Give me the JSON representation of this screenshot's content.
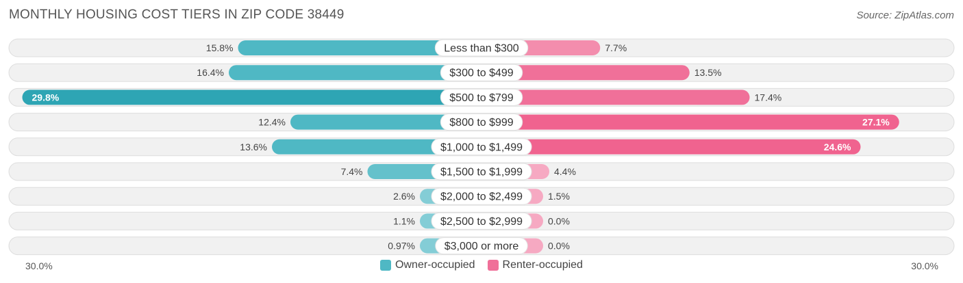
{
  "title": "MONTHLY HOUSING COST TIERS IN ZIP CODE 38449",
  "source": "Source: ZipAtlas.com",
  "chart_data": {
    "type": "bar",
    "orientation": "diverging-horizontal",
    "categories": [
      "Less than $300",
      "$300 to $499",
      "$500 to $799",
      "$800 to $999",
      "$1,000 to $1,499",
      "$1,500 to $1,999",
      "$2,000 to $2,499",
      "$2,500 to $2,999",
      "$3,000 or more"
    ],
    "series": [
      {
        "name": "Owner-occupied",
        "values": [
          15.8,
          16.4,
          29.8,
          12.4,
          13.6,
          7.4,
          2.6,
          1.1,
          0.97
        ],
        "labels": [
          "15.8%",
          "16.4%",
          "29.8%",
          "12.4%",
          "13.6%",
          "7.4%",
          "2.6%",
          "1.1%",
          "0.97%"
        ],
        "color": "#4fb8c4"
      },
      {
        "name": "Renter-occupied",
        "values": [
          7.7,
          13.5,
          17.4,
          27.1,
          24.6,
          4.4,
          1.5,
          0.0,
          0.0
        ],
        "labels": [
          "7.7%",
          "13.5%",
          "17.4%",
          "27.1%",
          "24.6%",
          "4.4%",
          "1.5%",
          "0.0%",
          "0.0%"
        ],
        "color": "#f07099"
      }
    ],
    "xlim": [
      -30,
      30
    ],
    "axis_min_label": "30.0%",
    "axis_max_label": "30.0%",
    "legend_position": "bottom-center"
  }
}
